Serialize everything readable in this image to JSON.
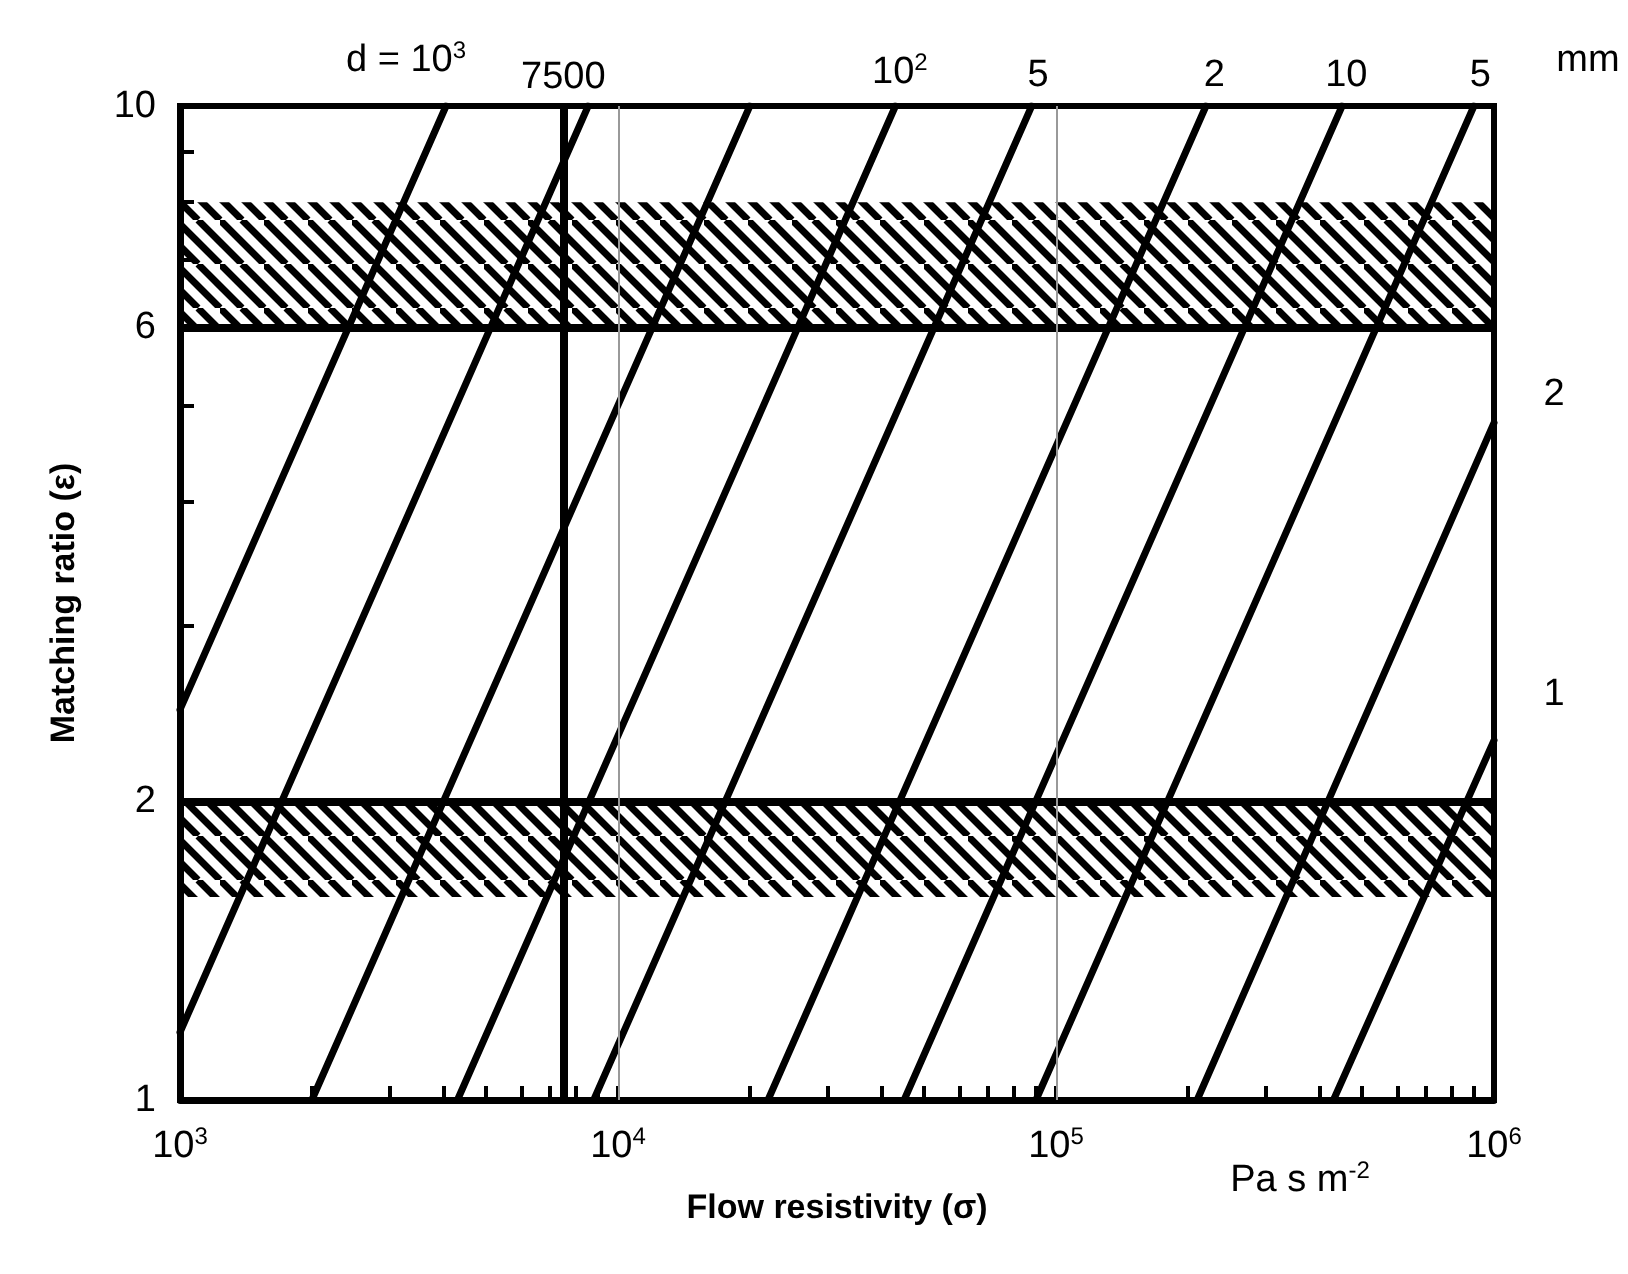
{
  "chart_data": {
    "type": "line",
    "xlabel": "Flow resistivity (σ)",
    "ylabel": "Matching ratio (ε)",
    "log": "xy",
    "grid": false,
    "legend": false,
    "marker": "none",
    "line_style": "solid",
    "xlim": [
      1000,
      1000000
    ],
    "xticks": [
      {
        "value": 1000,
        "label": "10$^{3}$"
      },
      {
        "value": 2000,
        "label": null
      },
      {
        "value": 3000,
        "label": null
      },
      {
        "value": 4000,
        "label": null
      },
      {
        "value": 5000,
        "label": null
      },
      {
        "value": 6000,
        "label": null
      },
      {
        "value": 7000,
        "label": null
      },
      {
        "value": 8000,
        "label": null
      },
      {
        "value": 9000,
        "label": null
      },
      {
        "value": 10000,
        "label": "10$^{4}$"
      },
      {
        "value": 20000,
        "label": null
      },
      {
        "value": 30000,
        "label": null
      },
      {
        "value": 40000,
        "label": null
      },
      {
        "value": 50000,
        "label": null
      },
      {
        "value": 60000,
        "label": null
      },
      {
        "value": 70000,
        "label": null
      },
      {
        "value": 80000,
        "label": null
      },
      {
        "value": 90000,
        "label": null
      },
      {
        "value": 100000,
        "label": "10$^{5}$"
      },
      {
        "value": 200000,
        "label": null
      },
      {
        "value": 300000,
        "label": null
      },
      {
        "value": 400000,
        "label": null
      },
      {
        "value": 500000,
        "label": null
      },
      {
        "value": 600000,
        "label": null
      },
      {
        "value": 700000,
        "label": null
      },
      {
        "value": 800000,
        "label": null
      },
      {
        "value": 900000,
        "label": null
      },
      {
        "value": 1000000,
        "label": "10$^{6}$"
      }
    ],
    "ylim": [
      1,
      10
    ],
    "yticks": [
      1,
      2,
      {
        "value": 3,
        "label": null
      },
      {
        "value": 4,
        "label": null
      },
      {
        "value": 5,
        "label": null
      },
      6,
      {
        "value": 7,
        "label": null
      },
      {
        "value": 8,
        "label": null
      },
      {
        "value": 9,
        "label": null
      },
      10
    ],
    "series": [
      {
        "color": "#000000",
        "x": [
          1000,
          4050
        ],
        "values": [
          2.47,
          10
        ]
      },
      {
        "color": "#000000",
        "x": [
          1000,
          8550
        ],
        "values": [
          1.17,
          10
        ]
      },
      {
        "color": "#000000",
        "x": [
          2000,
          20000
        ],
        "values": [
          1,
          10
        ]
      },
      {
        "color": "#000000",
        "x": [
          4300,
          43000
        ],
        "values": [
          1,
          10
        ]
      },
      {
        "color": "#000000",
        "x": [
          8800,
          88000
        ],
        "values": [
          1,
          10
        ]
      },
      {
        "color": "#000000",
        "x": [
          22000,
          220000
        ],
        "values": [
          1,
          10
        ]
      },
      {
        "color": "#000000",
        "x": [
          45000,
          450000
        ],
        "values": [
          1,
          10
        ]
      },
      {
        "color": "#000000",
        "x": [
          90000,
          900000
        ],
        "values": [
          1,
          10
        ]
      },
      {
        "color": "#000000",
        "x": [
          210000,
          1000000
        ],
        "values": [
          1,
          4.8
        ]
      },
      {
        "color": "#000000",
        "x": [
          430000,
          1000000
        ],
        "values": [
          1,
          2.3
        ]
      }
    ],
    "ref_lines": [
      {
        "axis": "y",
        "value": 6,
        "color": "#000000"
      },
      {
        "axis": "y",
        "value": 2,
        "color": "#000000"
      },
      {
        "axis": "x",
        "value": 7500,
        "label": "7500",
        "color": "#000000"
      },
      {
        "axis": "x",
        "value": 10000,
        "color": "#999999"
      },
      {
        "axis": "x",
        "value": 100000,
        "color": "#999999"
      }
    ],
    "bands": [
      {
        "axis": "y",
        "from": 6,
        "to": 8,
        "color": "#000000"
      },
      {
        "axis": "y",
        "from": 1.6,
        "to": 2,
        "color": "#000000"
      }
    ],
    "annotations": [
      "d = 10$^{3}$",
      {
        "text": "10$^{2}$",
        "x": 44000,
        "y": 10
      },
      {
        "text": "5",
        "x": 91000,
        "y": 10
      },
      {
        "text": "2",
        "x": 230000,
        "y": 10
      },
      {
        "text": "10",
        "x": 460000,
        "y": 10
      },
      {
        "text": "5",
        "x": 930000,
        "y": 10
      },
      "2",
      "1",
      "mm",
      "Pa s m$^{-2}$"
    ]
  }
}
